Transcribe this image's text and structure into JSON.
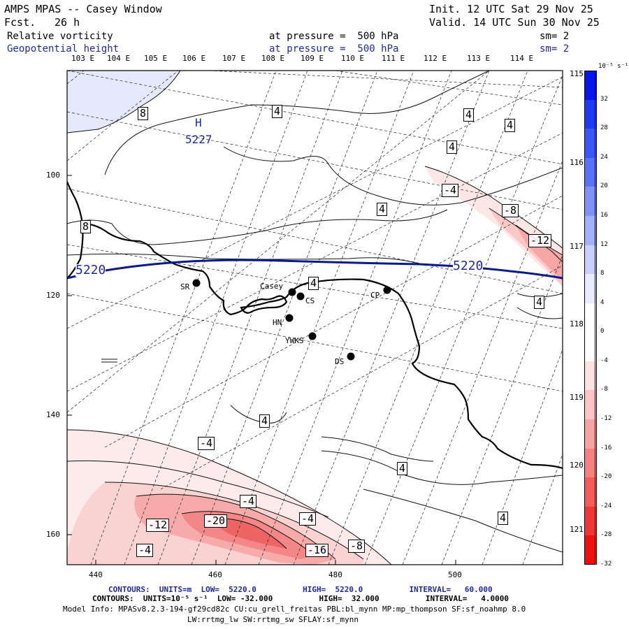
{
  "header": {
    "title": "AMPS MPAS -- Casey Window",
    "fcst_label": "Fcst.",
    "fcst_value": "26 h",
    "init": "Init. 12 UTC Sat 29 Nov 25",
    "valid": "Valid. 14 UTC Sun 30 Nov 25",
    "field1_name": "Relative vorticity",
    "field1_pressure": "at pressure =  500 hPa",
    "field1_sm": "sm= 2",
    "field2_name": "Geopotential height",
    "field2_pressure": "at pressure =  500 hPa",
    "field2_sm": "sm= 2"
  },
  "map": {
    "lon_top_labels": [
      "103 E",
      "104 E",
      "105 E",
      "106 E",
      "107 E",
      "108 E",
      "109 E",
      "110 E",
      "111 E",
      "112 E",
      "113 E",
      "114 E"
    ],
    "lon_right_labels": [
      "115 E",
      "116 E",
      "117 E",
      "118 E",
      "119 E",
      "120 E",
      "121 E"
    ],
    "y_axis_labels": [
      "100",
      "120",
      "140",
      "160"
    ],
    "x_axis_labels": [
      "440",
      "460",
      "480",
      "500"
    ],
    "high_marker": {
      "label": "H",
      "value": "5227"
    },
    "height_contour_labels": [
      "5220",
      "5220"
    ],
    "vorticity_labels": [
      "8",
      "8",
      "4",
      "4",
      "4",
      "4",
      "4",
      "-4",
      "-8",
      "-12",
      "4",
      "4",
      "4",
      "-4",
      "4",
      "-4",
      "4",
      "-4",
      "-12",
      "-20",
      "-4",
      "-16",
      "-8",
      "-4"
    ],
    "stations": [
      {
        "name": "SR"
      },
      {
        "name": "Casey"
      },
      {
        "name": "CS"
      },
      {
        "name": "CP"
      },
      {
        "name": "HN"
      },
      {
        "name": "YWKS"
      },
      {
        "name": "DS"
      }
    ]
  },
  "colorbar": {
    "unit": "10⁻⁵ s⁻¹",
    "labels": [
      "32",
      "28",
      "24",
      "20",
      "16",
      "12",
      "8",
      "4",
      "0",
      "-4",
      "-8",
      "-12",
      "-16",
      "-20",
      "-24",
      "-28",
      "-32"
    ],
    "colors": [
      "#0a16e8",
      "#1f3bf0",
      "#3a56f2",
      "#5a72f4",
      "#7f93f6",
      "#a3b1f8",
      "#c8d0fb",
      "#e8ecfe",
      "#ffffff",
      "#ffffff",
      "#fde2e2",
      "#fbc3c3",
      "#f8a3a3",
      "#f58080",
      "#f25c5c",
      "#ef3636",
      "#ec1010"
    ]
  },
  "footer": {
    "line1": "CONTOURS:  UNITS=m  LOW=  5220.0          HIGH=  5220.0          INTERVAL=   60.000",
    "line2": "CONTOURS:  UNITS=10⁻⁵ s⁻¹  LOW= -32.000          HIGH=  32.000          INTERVAL=   4.0000",
    "line3": "Model Info: MPASv8.2.3-194-gf29cd82c CU:cu_grell_freitas PBL:bl_mynn MP:mp_thompson SF:sf_noahmp 8.0",
    "line4": "LW:rrtmg_lw SW:rrtmg_sw SFLAY:sf_mynn"
  }
}
